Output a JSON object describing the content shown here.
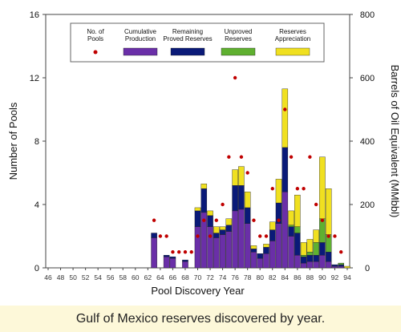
{
  "caption": "Gulf of Mexico reserves discovered by year.",
  "chart_data": {
    "type": "bar",
    "xlabel": "Pool Discovery Year",
    "ylabel_left": "Number of Pools",
    "ylabel_right": "Barrels of Oil Equivalent (MMbbl)",
    "ylim_left": [
      0,
      16
    ],
    "ylim_right": [
      0,
      800
    ],
    "yticks_left": [
      "0",
      "4",
      "8",
      "12",
      "16"
    ],
    "yticks_right": [
      "0",
      "200",
      "400",
      "600",
      "800"
    ],
    "years": [
      46,
      47,
      48,
      49,
      50,
      51,
      52,
      53,
      54,
      55,
      56,
      57,
      58,
      59,
      60,
      61,
      62,
      63,
      64,
      65,
      66,
      67,
      68,
      69,
      70,
      71,
      72,
      73,
      74,
      75,
      76,
      77,
      78,
      79,
      80,
      81,
      82,
      83,
      84,
      85,
      86,
      87,
      88,
      89,
      90,
      91,
      92,
      93,
      94
    ],
    "xtick_labels": [
      "46",
      "48",
      "50",
      "52",
      "54",
      "56",
      "58",
      "60",
      "62",
      "64",
      "66",
      "68",
      "70",
      "72",
      "74",
      "76",
      "78",
      "80",
      "82",
      "84",
      "86",
      "88",
      "90",
      "92",
      "94"
    ],
    "legend": [
      "No. of Pools",
      "Cumulative Production",
      "Remaining Proved Reserves",
      "Unproved Reserves",
      "Reserves Appreciation"
    ],
    "colors": {
      "pools": "#c00000",
      "cumulative": "#6a2fa8",
      "remaining": "#0a1a78",
      "unproved": "#5fb030",
      "appreciation": "#f0e020"
    },
    "series": [
      {
        "name": "Cumulative Production",
        "values": [
          0,
          0,
          0,
          0,
          0,
          0,
          0,
          0,
          0,
          0,
          0,
          0,
          0,
          0,
          0,
          0,
          0,
          95,
          0,
          35,
          30,
          0,
          20,
          0,
          130,
          175,
          130,
          95,
          105,
          115,
          180,
          185,
          140,
          50,
          30,
          45,
          85,
          140,
          240,
          100,
          40,
          15,
          20,
          20,
          40,
          20,
          5,
          5,
          0
        ]
      },
      {
        "name": "Remaining Proved Reserves",
        "values": [
          0,
          0,
          0,
          0,
          0,
          0,
          0,
          0,
          0,
          0,
          0,
          0,
          0,
          0,
          0,
          0,
          0,
          15,
          0,
          5,
          5,
          0,
          5,
          0,
          50,
          75,
          35,
          15,
          15,
          20,
          80,
          75,
          50,
          10,
          15,
          20,
          35,
          65,
          140,
          30,
          70,
          20,
          20,
          20,
          40,
          30,
          5,
          5,
          0
        ]
      },
      {
        "name": "Unproved Reserves",
        "values": [
          0,
          0,
          0,
          0,
          0,
          0,
          0,
          0,
          0,
          0,
          0,
          0,
          0,
          0,
          0,
          0,
          0,
          0,
          0,
          0,
          0,
          0,
          0,
          0,
          0,
          0,
          0,
          0,
          0,
          0,
          0,
          0,
          0,
          0,
          0,
          0,
          0,
          0,
          0,
          5,
          20,
          5,
          10,
          40,
          75,
          55,
          0,
          5,
          0
        ]
      },
      {
        "name": "Reserves Appreciation",
        "values": [
          0,
          0,
          0,
          0,
          0,
          0,
          0,
          0,
          0,
          0,
          0,
          0,
          0,
          0,
          0,
          0,
          0,
          0,
          0,
          0,
          0,
          0,
          0,
          0,
          10,
          15,
          15,
          20,
          10,
          20,
          50,
          60,
          50,
          10,
          0,
          10,
          25,
          75,
          185,
          45,
          100,
          40,
          40,
          40,
          195,
          145,
          0,
          0,
          5
        ]
      },
      {
        "name": "No. of Pools",
        "values": [
          0,
          0,
          0,
          0,
          0,
          0,
          0,
          0,
          0,
          0,
          0,
          0,
          0,
          0,
          0,
          0,
          0,
          3,
          2,
          2,
          1,
          1,
          1,
          1,
          2,
          3,
          2,
          3,
          4,
          7,
          12,
          7,
          6,
          3,
          2,
          2,
          5,
          3,
          10,
          7,
          5,
          5,
          7,
          4,
          3,
          2,
          2,
          1,
          0
        ]
      }
    ]
  }
}
